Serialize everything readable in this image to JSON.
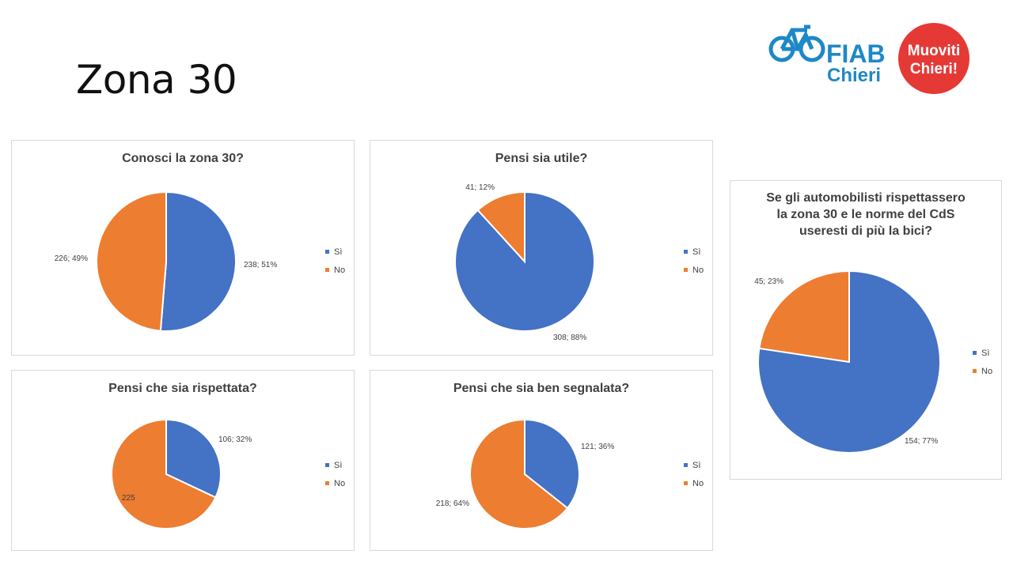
{
  "slide": {
    "title": "Zona 30"
  },
  "logo": {
    "org_line1": "FIAB",
    "org_line2": "Chieri",
    "badge_line1": "Muoviti",
    "badge_line2": "Chieri!",
    "icon": "bicycle-icon"
  },
  "colors": {
    "si": "#4472C4",
    "no": "#ED7D31",
    "logo_blue": "#1E88C7",
    "logo_red": "#E53935"
  },
  "chart_data": [
    {
      "type": "pie",
      "title": "Conosci la zona 30?",
      "categories": [
        "Sì",
        "No"
      ],
      "values": [
        238,
        226
      ],
      "data_labels": [
        "238; 51%",
        "226; 49%"
      ],
      "legend": [
        "Sì",
        "No"
      ],
      "legend_position": "right"
    },
    {
      "type": "pie",
      "title": "Pensi sia utile?",
      "categories": [
        "Sì",
        "No"
      ],
      "values": [
        308,
        41
      ],
      "data_labels": [
        "308; 88%",
        "41; 12%"
      ],
      "legend": [
        "Sì",
        "No"
      ],
      "legend_position": "right"
    },
    {
      "type": "pie",
      "title": "Pensi che sia rispettata?",
      "categories": [
        "Sì",
        "No"
      ],
      "values": [
        106,
        225
      ],
      "data_labels": [
        "106; 32%",
        "225"
      ],
      "legend": [
        "Sì",
        "No"
      ],
      "legend_position": "right"
    },
    {
      "type": "pie",
      "title": "Pensi che sia ben segnalata?",
      "categories": [
        "Sì",
        "No"
      ],
      "values": [
        121,
        218
      ],
      "data_labels": [
        "121; 36%",
        "218; 64%"
      ],
      "legend": [
        "Sì",
        "No"
      ],
      "legend_position": "right"
    },
    {
      "type": "pie",
      "title": "Se gli automobilisti rispettassero la zona 30 e le norme del CdS useresti di più la bici?",
      "title_lines": [
        "Se gli automobilisti rispettassero",
        "la zona 30 e le norme del CdS",
        "useresti di più la bici?"
      ],
      "categories": [
        "Sì",
        "No"
      ],
      "values": [
        154,
        45
      ],
      "data_labels": [
        "154; 77%",
        "45; 23%"
      ],
      "legend": [
        "Sì",
        "No"
      ],
      "legend_position": "right"
    }
  ]
}
